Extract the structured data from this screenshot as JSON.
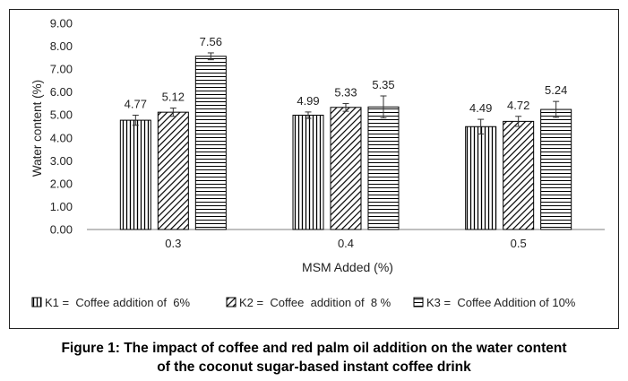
{
  "chart_data": {
    "type": "bar",
    "title": "",
    "xlabel": "MSM Added (%)",
    "ylabel": "Water content  (%)",
    "ylim": [
      0,
      9
    ],
    "ytick_step": 1,
    "ytick_labels": [
      "0.00",
      "1.00",
      "2.00",
      "3.00",
      "4.00",
      "5.00",
      "6.00",
      "7.00",
      "8.00",
      "9.00"
    ],
    "categories": [
      "0.3",
      "0.4",
      "0.5"
    ],
    "grid": false,
    "legend_position": "bottom",
    "series": [
      {
        "name": "K1 =  Coffee addition of  6%",
        "pattern": "vertical-lines",
        "values": [
          4.77,
          4.99,
          4.49
        ],
        "errors": [
          0.22,
          0.14,
          0.32
        ],
        "labels": [
          "4.77",
          "4.99",
          "4.49"
        ]
      },
      {
        "name": "K2 =  Coffee  addition of  8 %",
        "pattern": "diagonal-lines",
        "values": [
          5.12,
          5.33,
          4.72
        ],
        "errors": [
          0.18,
          0.17,
          0.22
        ],
        "labels": [
          "5.12",
          "5.33",
          "4.72"
        ]
      },
      {
        "name": "K3 =  Coffee Addition of 10%",
        "pattern": "horizontal-lines",
        "values": [
          7.56,
          5.35,
          5.24
        ],
        "errors": [
          0.15,
          0.48,
          0.35
        ],
        "labels": [
          "7.56",
          "5.35",
          "5.24"
        ]
      }
    ],
    "colors": {
      "bar_stroke": "#000000",
      "axis": "#7f7f7f",
      "text": "#222222"
    }
  },
  "caption": {
    "line1": "Figure 1: The impact of coffee and red palm oil addition on the water content",
    "line2": "of the coconut sugar-based instant coffee drink"
  }
}
